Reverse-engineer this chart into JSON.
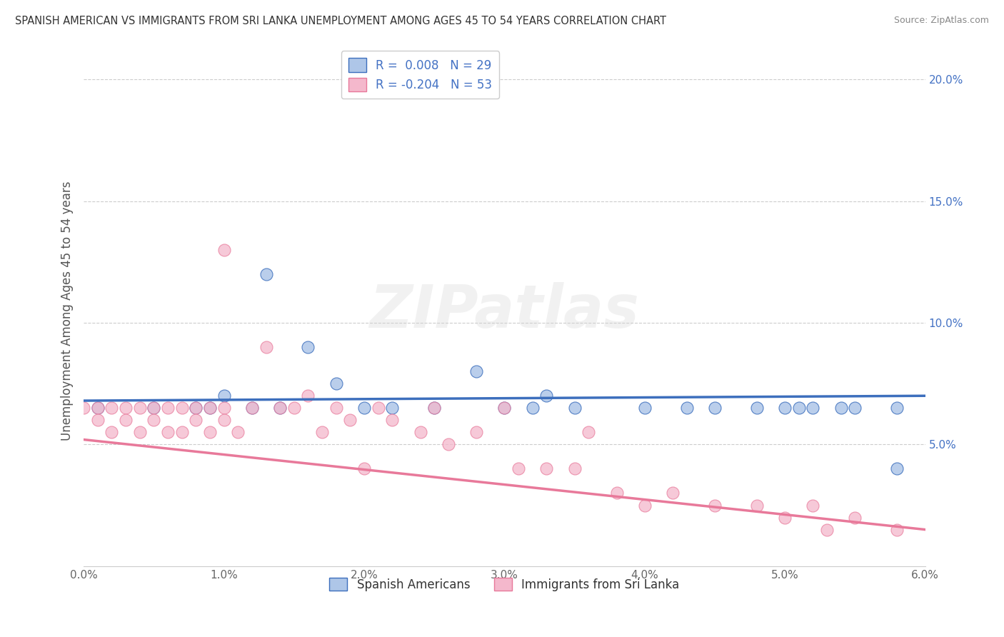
{
  "title": "SPANISH AMERICAN VS IMMIGRANTS FROM SRI LANKA UNEMPLOYMENT AMONG AGES 45 TO 54 YEARS CORRELATION CHART",
  "source": "Source: ZipAtlas.com",
  "ylabel": "Unemployment Among Ages 45 to 54 years",
  "xlim": [
    0.0,
    0.06
  ],
  "ylim": [
    0.0,
    0.21
  ],
  "xticks": [
    0.0,
    0.01,
    0.02,
    0.03,
    0.04,
    0.05,
    0.06
  ],
  "xticklabels": [
    "0.0%",
    "1.0%",
    "2.0%",
    "3.0%",
    "4.0%",
    "5.0%",
    "6.0%"
  ],
  "yticks": [
    0.05,
    0.1,
    0.15,
    0.2
  ],
  "yticklabels": [
    "5.0%",
    "10.0%",
    "15.0%",
    "20.0%"
  ],
  "legend1_r": "R =  0.008",
  "legend1_n": "N = 29",
  "legend2_r": "R = -0.204",
  "legend2_n": "N = 53",
  "series1_color": "#aec6e8",
  "series2_color": "#f4b8cc",
  "trendline1_color": "#3d6fbd",
  "trendline2_color": "#e8799a",
  "watermark": "ZIPatlas",
  "background_color": "#ffffff",
  "grid_color": "#cccccc",
  "series1_x": [
    0.001,
    0.005,
    0.008,
    0.009,
    0.01,
    0.012,
    0.013,
    0.014,
    0.016,
    0.018,
    0.02,
    0.022,
    0.025,
    0.028,
    0.03,
    0.032,
    0.033,
    0.035,
    0.04,
    0.043,
    0.045,
    0.048,
    0.05,
    0.051,
    0.052,
    0.054,
    0.055,
    0.058,
    0.058
  ],
  "series1_y": [
    0.065,
    0.065,
    0.065,
    0.065,
    0.07,
    0.065,
    0.12,
    0.065,
    0.09,
    0.075,
    0.065,
    0.065,
    0.065,
    0.08,
    0.065,
    0.065,
    0.07,
    0.065,
    0.065,
    0.065,
    0.065,
    0.065,
    0.065,
    0.065,
    0.065,
    0.065,
    0.065,
    0.065,
    0.04
  ],
  "series2_x": [
    0.0,
    0.001,
    0.001,
    0.002,
    0.002,
    0.003,
    0.003,
    0.004,
    0.004,
    0.005,
    0.005,
    0.006,
    0.006,
    0.007,
    0.007,
    0.008,
    0.008,
    0.009,
    0.009,
    0.01,
    0.01,
    0.01,
    0.011,
    0.012,
    0.013,
    0.014,
    0.015,
    0.016,
    0.017,
    0.018,
    0.019,
    0.02,
    0.021,
    0.022,
    0.024,
    0.025,
    0.026,
    0.028,
    0.03,
    0.031,
    0.033,
    0.035,
    0.036,
    0.038,
    0.04,
    0.042,
    0.045,
    0.048,
    0.05,
    0.052,
    0.053,
    0.055,
    0.058
  ],
  "series2_y": [
    0.065,
    0.065,
    0.06,
    0.065,
    0.055,
    0.065,
    0.06,
    0.065,
    0.055,
    0.065,
    0.06,
    0.065,
    0.055,
    0.065,
    0.055,
    0.065,
    0.06,
    0.065,
    0.055,
    0.065,
    0.06,
    0.13,
    0.055,
    0.065,
    0.09,
    0.065,
    0.065,
    0.07,
    0.055,
    0.065,
    0.06,
    0.04,
    0.065,
    0.06,
    0.055,
    0.065,
    0.05,
    0.055,
    0.065,
    0.04,
    0.04,
    0.04,
    0.055,
    0.03,
    0.025,
    0.03,
    0.025,
    0.025,
    0.02,
    0.025,
    0.015,
    0.02,
    0.015
  ],
  "trendline1_x0": 0.0,
  "trendline1_x1": 0.06,
  "trendline1_y0": 0.068,
  "trendline1_y1": 0.07,
  "trendline2_x0": 0.0,
  "trendline2_x1": 0.06,
  "trendline2_y0": 0.052,
  "trendline2_y1": 0.015
}
